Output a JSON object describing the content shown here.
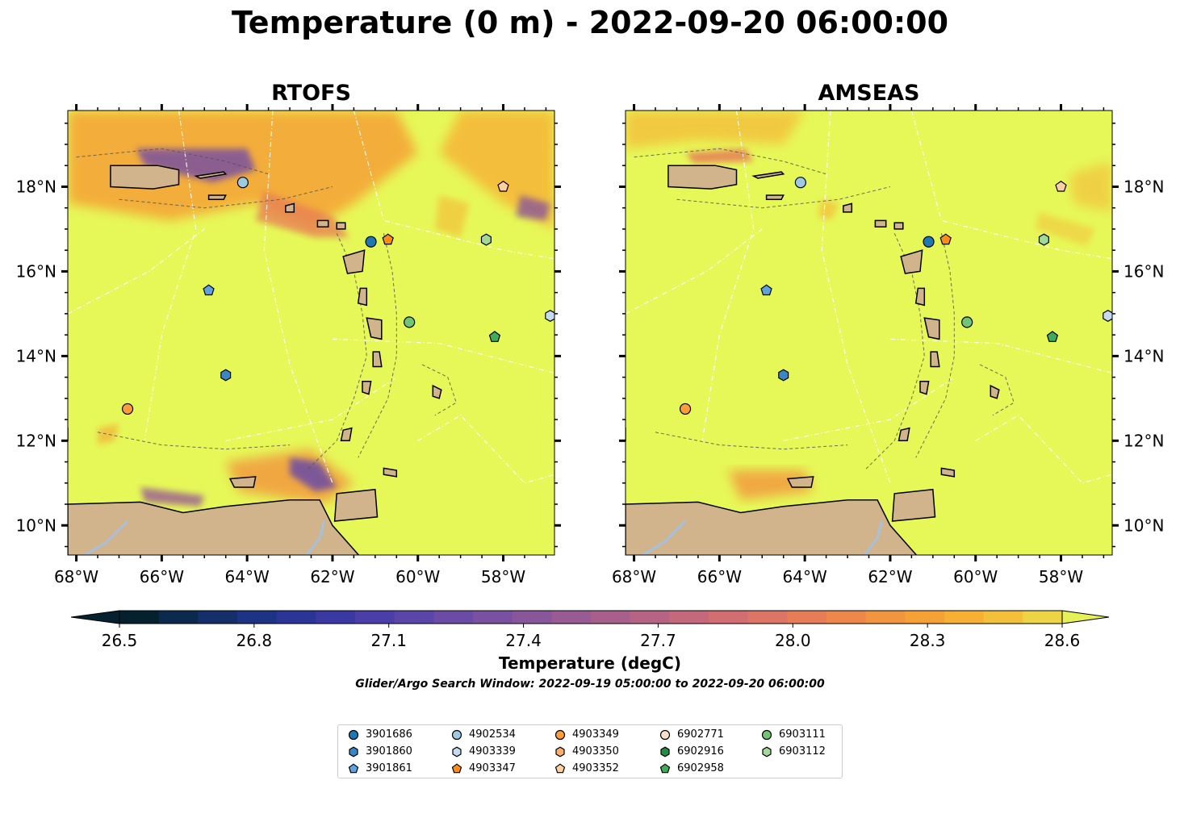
{
  "title": "Temperature (0 m) - 2022-09-20 06:00:00",
  "panels": [
    {
      "title": "RTOFS"
    },
    {
      "title": "AMSEAS"
    }
  ],
  "axes": {
    "lon_ticks": [
      "68°W",
      "66°W",
      "64°W",
      "62°W",
      "60°W",
      "58°W"
    ],
    "lat_ticks": [
      "18°N",
      "16°N",
      "14°N",
      "12°N",
      "10°N"
    ],
    "lon_range": [
      -68.2,
      -56.8
    ],
    "lat_range": [
      9.3,
      19.8
    ]
  },
  "colorbar": {
    "label": "Temperature (degC)",
    "ticks": [
      "26.5",
      "26.8",
      "27.1",
      "27.4",
      "27.7",
      "28.0",
      "28.3",
      "28.6"
    ],
    "range": [
      26.5,
      28.6
    ],
    "extend": "both",
    "colors": [
      "#05202f",
      "#0c2a4e",
      "#142f6a",
      "#1d3383",
      "#2b3497",
      "#3a39a3",
      "#4b3ea8",
      "#5a45a8",
      "#6a4ba5",
      "#7a51a0",
      "#8a569a",
      "#995b93",
      "#a85f8c",
      "#b76484",
      "#c5687b",
      "#d26d71",
      "#de7465",
      "#e77d57",
      "#ee884a",
      "#f3943e",
      "#f6a135",
      "#f7b034",
      "#f4c03a",
      "#edd445",
      "#e6f158"
    ]
  },
  "search_window": "Glider/Argo Search Window: 2022-09-19 05:00:00 to 2022-09-20 06:00:00",
  "colors": {
    "ocean_base": "#e6f858",
    "land": "#d2b48c",
    "lake": "#a6c1dc"
  },
  "platforms": [
    {
      "id": "3901686",
      "marker": "circle",
      "color": "#1f77b4",
      "lon": -61.1,
      "lat": 16.7
    },
    {
      "id": "3901860",
      "marker": "hexagon",
      "color": "#3b86c4",
      "lon": -64.5,
      "lat": 13.55
    },
    {
      "id": "3901861",
      "marker": "pentagon",
      "color": "#5fa2dd",
      "lon": -64.9,
      "lat": 15.55
    },
    {
      "id": "4902534",
      "marker": "circle",
      "color": "#9ecae1",
      "lon": -64.1,
      "lat": 18.1
    },
    {
      "id": "4903339",
      "marker": "hexagon",
      "color": "#c6dbef",
      "lon": -56.9,
      "lat": 14.95
    },
    {
      "id": "4903347",
      "marker": "pentagon",
      "color": "#fd8d16",
      "lon": -60.7,
      "lat": 16.75
    },
    {
      "id": "4903349",
      "marker": "circle",
      "color": "#fd9d3c",
      "lon": -66.8,
      "lat": 12.75
    },
    {
      "id": "4903350",
      "marker": "hexagon",
      "color": "#fdae6b",
      "lon": null,
      "lat": null
    },
    {
      "id": "4903352",
      "marker": "pentagon",
      "color": "#fdd0a2",
      "lon": -58.0,
      "lat": 18.0
    },
    {
      "id": "6902771",
      "marker": "circle",
      "color": "#fde0cc",
      "lon": null,
      "lat": null
    },
    {
      "id": "6902916",
      "marker": "hexagon",
      "color": "#238b45",
      "lon": null,
      "lat": null
    },
    {
      "id": "6902958",
      "marker": "pentagon",
      "color": "#41ab5d",
      "lon": -58.2,
      "lat": 14.45
    },
    {
      "id": "6903111",
      "marker": "circle",
      "color": "#74c476",
      "lon": -60.2,
      "lat": 14.8
    },
    {
      "id": "6903112",
      "marker": "hexagon",
      "color": "#a1d99b",
      "lon": -58.4,
      "lat": 16.75
    }
  ]
}
